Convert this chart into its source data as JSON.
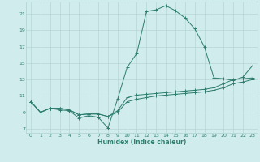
{
  "xlabel": "Humidex (Indice chaleur)",
  "x_values": [
    0,
    1,
    2,
    3,
    4,
    5,
    6,
    7,
    8,
    9,
    10,
    11,
    12,
    13,
    14,
    15,
    16,
    17,
    18,
    19,
    20,
    21,
    22,
    23
  ],
  "line1_y": [
    10.3,
    9.0,
    9.5,
    9.3,
    9.2,
    8.3,
    8.6,
    8.4,
    7.1,
    10.6,
    14.5,
    16.2,
    21.3,
    21.5,
    22.0,
    21.4,
    20.5,
    19.2,
    17.0,
    13.2,
    13.1,
    12.9,
    13.3,
    14.7
  ],
  "line2_y": [
    10.3,
    9.0,
    9.5,
    9.5,
    9.3,
    8.7,
    8.8,
    8.8,
    8.5,
    9.2,
    10.8,
    11.1,
    11.2,
    11.3,
    11.4,
    11.5,
    11.6,
    11.7,
    11.8,
    12.0,
    12.5,
    13.0,
    13.1,
    13.2
  ],
  "line3_y": [
    10.3,
    9.0,
    9.5,
    9.5,
    9.3,
    8.7,
    8.8,
    8.8,
    8.5,
    9.0,
    10.3,
    10.6,
    10.8,
    11.0,
    11.1,
    11.2,
    11.3,
    11.4,
    11.5,
    11.7,
    12.0,
    12.5,
    12.7,
    13.0
  ],
  "line_color": "#2d7d6e",
  "bg_color": "#d0ecec",
  "grid_color": "#b0d0d0",
  "xlim": [
    -0.5,
    23.5
  ],
  "ylim": [
    6.5,
    22.5
  ],
  "yticks": [
    7,
    9,
    11,
    13,
    15,
    17,
    19,
    21
  ],
  "xticks": [
    0,
    1,
    2,
    3,
    4,
    5,
    6,
    7,
    8,
    9,
    10,
    11,
    12,
    13,
    14,
    15,
    16,
    17,
    18,
    19,
    20,
    21,
    22,
    23
  ]
}
